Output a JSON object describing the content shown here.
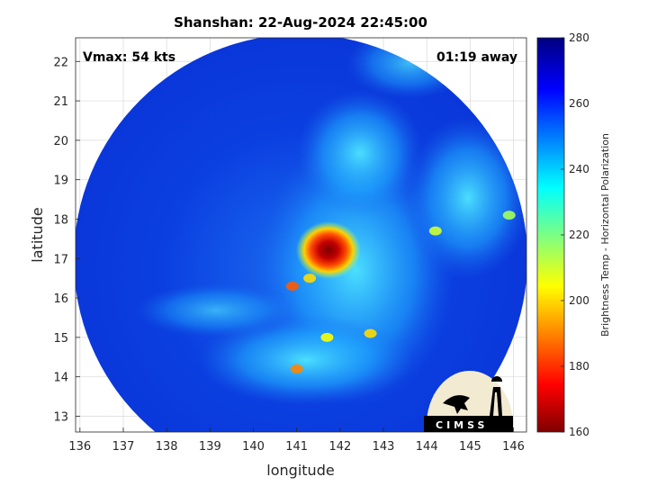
{
  "chart_data": {
    "type": "heatmap",
    "title": "Shanshan: 22-Aug-2024 22:45:00",
    "xlabel": "longitude",
    "ylabel": "latitude",
    "xlim": [
      135.9,
      146.3
    ],
    "ylim": [
      12.6,
      22.6
    ],
    "xticks": [
      136,
      137,
      138,
      139,
      140,
      141,
      142,
      143,
      144,
      145,
      146
    ],
    "yticks": [
      13,
      14,
      15,
      16,
      17,
      18,
      19,
      20,
      21,
      22
    ],
    "grid": true,
    "annotations": {
      "vmax": "Vmax: 54 kts",
      "offset": "01:19 away"
    },
    "colorbar": {
      "label": "Brightness Temp - Horizontal Polarization",
      "range": [
        160,
        280
      ],
      "ticks": [
        160,
        180,
        200,
        220,
        240,
        260,
        280
      ],
      "colormap": "jet"
    },
    "swath": {
      "center_lon": 141.5,
      "center_lat": 17.1,
      "edge": "circular"
    },
    "features": [
      {
        "name": "cold-core",
        "lon": 141.55,
        "lat": 17.15,
        "value": 165
      },
      {
        "name": "band-spot",
        "lon": 141.3,
        "lat": 16.5,
        "value": 200
      },
      {
        "name": "band-spot",
        "lon": 140.9,
        "lat": 16.3,
        "value": 185
      },
      {
        "name": "band-spot",
        "lon": 141.7,
        "lat": 15.0,
        "value": 205
      },
      {
        "name": "band-spot",
        "lon": 142.7,
        "lat": 15.1,
        "value": 200
      },
      {
        "name": "band-spot",
        "lon": 141.0,
        "lat": 14.2,
        "value": 190
      },
      {
        "name": "band-spot",
        "lon": 145.9,
        "lat": 18.1,
        "value": 215
      },
      {
        "name": "band-spot",
        "lon": 144.2,
        "lat": 17.7,
        "value": 210
      }
    ],
    "logo": "CIMSS"
  },
  "colors": {
    "background": "#ffffff",
    "grid": "#d9d9d9",
    "axis": "#262626"
  }
}
